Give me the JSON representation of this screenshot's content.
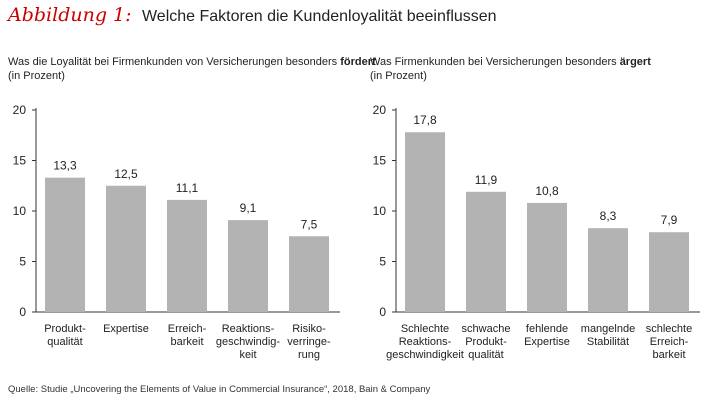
{
  "header": {
    "figure_label": "Abbildung 1:",
    "title": "Welche Faktoren die Kundenloyalität beeinflussen"
  },
  "panels": [
    {
      "title_prefix": "Was die Loyalität bei Firmenkunden von Versicherungen besonders ",
      "title_emph": "fördert",
      "subtitle": "(in Prozent)"
    },
    {
      "title_prefix": "Was Firmenkunden bei Versicherungen besonders ",
      "title_emph": "ärgert",
      "subtitle": "(in Prozent)"
    }
  ],
  "footer": {
    "source": "Quelle: Studie „Uncovering the Elements of Value in Commercial Insurance“, 2018, Bain & Company"
  },
  "colors": {
    "bar": "#b3b3b3",
    "axis": "#333333",
    "accent": "#cc0000"
  },
  "chart_data": [
    {
      "type": "bar",
      "categories": [
        [
          "Produkt-",
          "qualität"
        ],
        [
          "Expertise"
        ],
        [
          "Erreich-",
          "barkeit"
        ],
        [
          "Reaktions-",
          "geschwindig-",
          "keit"
        ],
        [
          "Risiko-",
          "verringe-",
          "rung"
        ]
      ],
      "values": [
        13.3,
        12.5,
        11.1,
        9.1,
        7.5
      ],
      "value_labels": [
        "13,3",
        "12,5",
        "11,1",
        "9,1",
        "7,5"
      ],
      "yticks": [
        "0",
        "5",
        "10",
        "15",
        "20"
      ],
      "ylim": [
        0,
        20
      ]
    },
    {
      "type": "bar",
      "categories": [
        [
          "Schlechte",
          "Reaktions-",
          "geschwindigkeit"
        ],
        [
          "schwache",
          "Produkt-",
          "qualität"
        ],
        [
          "fehlende",
          "Expertise"
        ],
        [
          "mangelnde",
          "Stabilität"
        ],
        [
          "schlechte",
          "Erreich-",
          "barkeit"
        ]
      ],
      "values": [
        17.8,
        11.9,
        10.8,
        8.3,
        7.9
      ],
      "value_labels": [
        "17,8",
        "11,9",
        "10,8",
        "8,3",
        "7,9"
      ],
      "yticks": [
        "0",
        "5",
        "10",
        "15",
        "20"
      ],
      "ylim": [
        0,
        20
      ]
    }
  ]
}
